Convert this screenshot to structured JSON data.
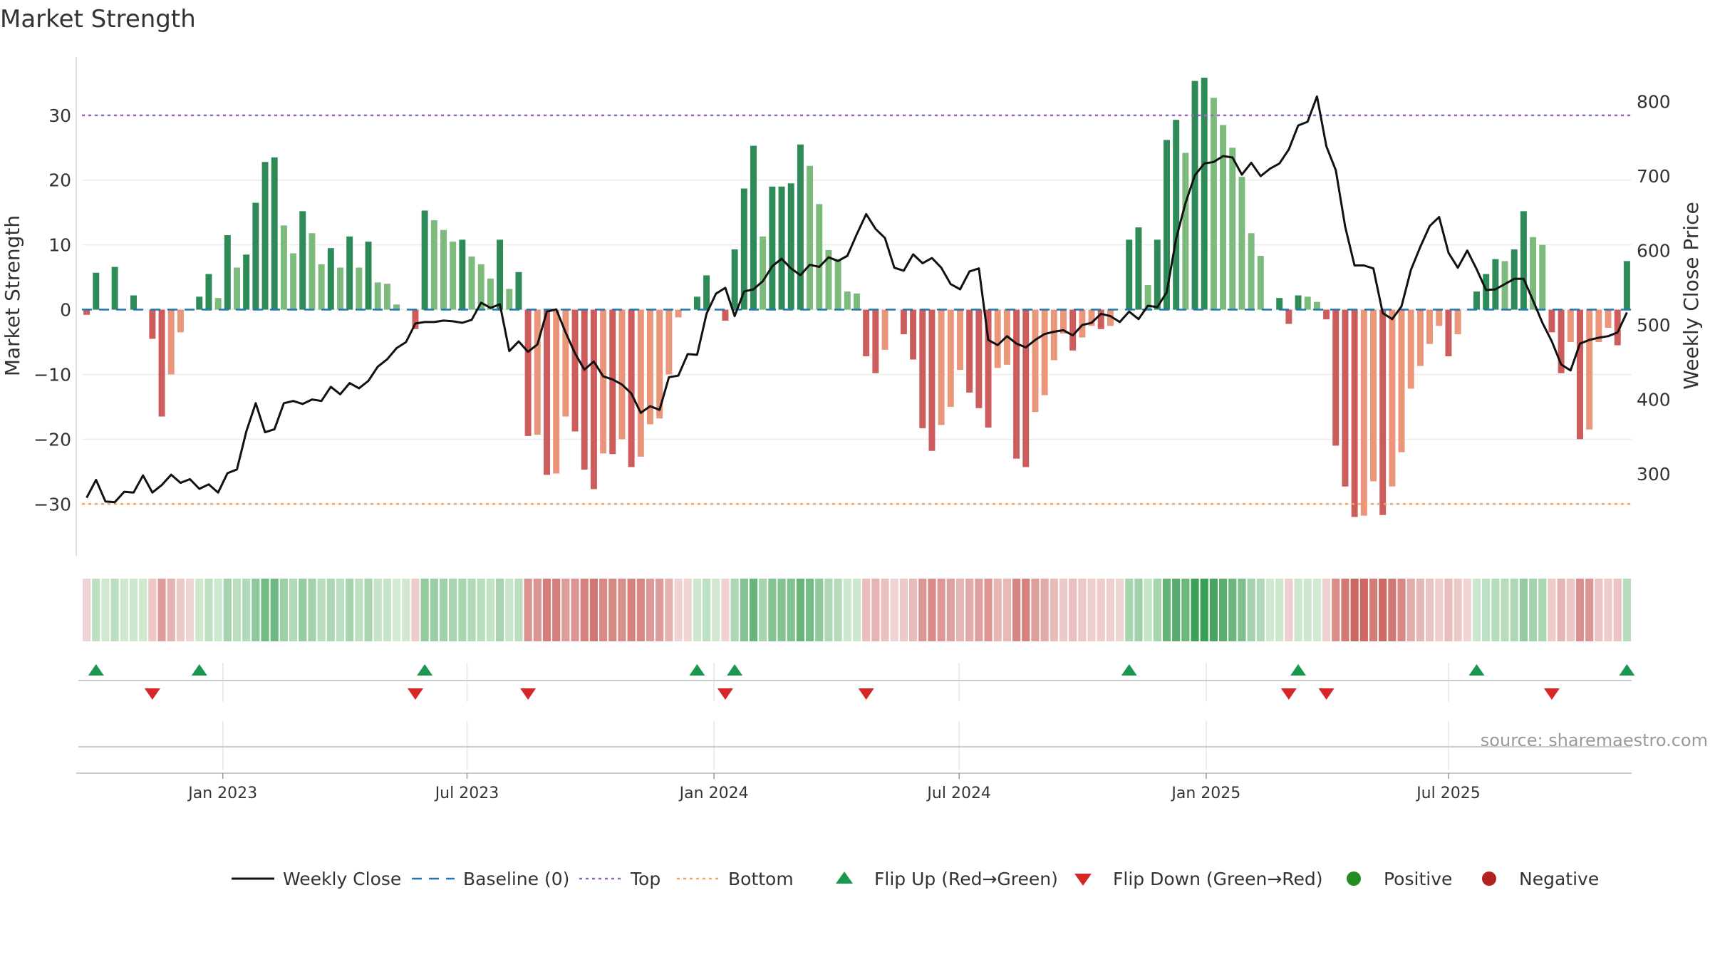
{
  "chart_data": {
    "type": "bar",
    "title": "Market Strength",
    "ylabel": "Market Strength",
    "y2label": "Weekly Close Price",
    "source": "source: sharemaestro.com",
    "ylim": [
      -38,
      39
    ],
    "y2lim": [
      190,
      860
    ],
    "yticks": [
      30,
      20,
      10,
      0,
      -10,
      -20,
      -30
    ],
    "ytick_labels": [
      "30",
      "20",
      "10",
      "0",
      "−10",
      "−20",
      "−30"
    ],
    "y2ticks": [
      800,
      700,
      600,
      500,
      400,
      300
    ],
    "y2tick_labels": [
      "800",
      "700",
      "600",
      "500",
      "400",
      "300"
    ],
    "x_labels": [
      {
        "label": "Jan 2023",
        "week": 14.5
      },
      {
        "label": "Jul 2023",
        "week": 40.5
      },
      {
        "label": "Jan 2024",
        "week": 66.8
      },
      {
        "label": "Jul 2024",
        "week": 92.9
      },
      {
        "label": "Jan 2025",
        "week": 119.2
      },
      {
        "label": "Jul 2025",
        "week": 145.0
      }
    ],
    "grid": true,
    "legend_position": "bottom",
    "thresholds": {
      "top": 30,
      "bottom": -30,
      "baseline": 0
    },
    "strength": [
      -0.8,
      5.7,
      0,
      6.6,
      0,
      2.2,
      0,
      -4.5,
      -16.5,
      -10.0,
      -3.5,
      0,
      2.0,
      5.5,
      1.8,
      11.5,
      6.5,
      8.5,
      16.5,
      22.8,
      23.5,
      13.0,
      8.7,
      15.2,
      11.8,
      7.0,
      9.5,
      6.5,
      11.3,
      6.5,
      10.5,
      4.2,
      4.0,
      0.8,
      0,
      -3.0,
      15.3,
      13.8,
      12.3,
      10.5,
      10.8,
      8.2,
      7.0,
      4.8,
      10.8,
      3.2,
      5.8,
      -19.5,
      -19.3,
      -25.5,
      -25.3,
      -16.5,
      -18.8,
      -24.7,
      -27.7,
      -22.2,
      -22.3,
      -20.0,
      -24.3,
      -22.7,
      -17.7,
      -16.8,
      -10.0,
      -1.2,
      0,
      2.0,
      5.3,
      0,
      -1.7,
      9.3,
      18.7,
      25.3,
      11.3,
      19.0,
      19.0,
      19.5,
      25.5,
      22.2,
      16.3,
      9.2,
      7.8,
      2.8,
      2.5,
      -7.2,
      -9.8,
      -6.2,
      0,
      -3.8,
      -7.7,
      -18.3,
      -21.8,
      -17.8,
      -15.0,
      -9.3,
      -12.8,
      -15.2,
      -18.2,
      -9.0,
      -8.5,
      -23.0,
      -24.3,
      -15.8,
      -13.2,
      -7.8,
      -3.7,
      -6.3,
      -4.3,
      -2.5,
      -3.0,
      -2.5,
      0,
      10.8,
      12.7,
      3.8,
      10.8,
      26.2,
      29.3,
      24.2,
      35.3,
      35.8,
      32.7,
      28.5,
      25.0,
      20.5,
      11.8,
      8.3,
      0,
      1.8,
      -2.2,
      2.2,
      2.0,
      1.2,
      -1.5,
      -21.0,
      -27.3,
      -32.0,
      -31.8,
      -26.5,
      -31.7,
      -27.3,
      -22.0,
      -12.2,
      -8.7,
      -5.3,
      -2.5,
      -7.2,
      -3.8,
      0,
      2.8,
      5.5,
      7.8,
      7.5,
      9.3,
      15.2,
      11.2,
      10.0,
      -3.5,
      -9.8,
      -5.0,
      -20.0,
      -18.5,
      -5.0,
      -2.8,
      -5.5,
      7.5
    ],
    "price": [
      268,
      292,
      263,
      262,
      276,
      275,
      298,
      275,
      285,
      299,
      288,
      293,
      280,
      286,
      275,
      301,
      306,
      357,
      395,
      356,
      360,
      395,
      398,
      394,
      400,
      398,
      417,
      407,
      422,
      415,
      425,
      444,
      454,
      469,
      477,
      502,
      504,
      504,
      506,
      505,
      503,
      507,
      530,
      523,
      528,
      465,
      478,
      464,
      474,
      518,
      521,
      490,
      462,
      440,
      451,
      431,
      427,
      420,
      408,
      382,
      391,
      386,
      430,
      432,
      461,
      460,
      515,
      542,
      550,
      512,
      545,
      548,
      559,
      579,
      589,
      576,
      567,
      581,
      578,
      591,
      586,
      593,
      622,
      649,
      629,
      617,
      577,
      573,
      595,
      583,
      590,
      577,
      555,
      548,
      572,
      576,
      480,
      473,
      485,
      475,
      470,
      480,
      488,
      491,
      493,
      486,
      500,
      503,
      515,
      512,
      504,
      518,
      508,
      526,
      524,
      544,
      616,
      664,
      701,
      717,
      719,
      727,
      725,
      702,
      718,
      700,
      710,
      717,
      736,
      768,
      773,
      807,
      740,
      708,
      632,
      580,
      580,
      576,
      516,
      508,
      525,
      574,
      605,
      633,
      645,
      597,
      577,
      600,
      575,
      547,
      548,
      555,
      562,
      562,
      533,
      503,
      478,
      447,
      439,
      475,
      480,
      483,
      485,
      490,
      517
    ]
  },
  "page": {
    "title": "Market Strength",
    "ylabel": "Market Strength",
    "y2label": "Weekly Close Price",
    "source": "source: sharemaestro.com"
  },
  "colors": {
    "strong_up": "#2e8b57",
    "weak_up": "#7dbb7d",
    "strong_down": "#cd5c5c",
    "weak_down": "#e9967a",
    "price_line": "#111111",
    "baseline": "#1f77b4",
    "top": "#9467bd",
    "bottom": "#f4a460",
    "flip_up": "#1a9850",
    "flip_down": "#d62728",
    "positive": "#228b22",
    "negative": "#b22222"
  },
  "legend": [
    {
      "label": "Weekly Close",
      "marker": "line-solid",
      "color": "#111111"
    },
    {
      "label": "Baseline (0)",
      "marker": "line-dash",
      "color": "#1f77b4"
    },
    {
      "label": "Top",
      "marker": "line-dot",
      "color": "#9467bd"
    },
    {
      "label": "Bottom",
      "marker": "line-dot",
      "color": "#f4a460"
    },
    {
      "label": "Flip Up (Red→Green)",
      "marker": "triangle-up",
      "color": "#1a9850"
    },
    {
      "label": "Flip Down (Green→Red)",
      "marker": "triangle-down",
      "color": "#d62728"
    },
    {
      "label": "Positive",
      "marker": "circle",
      "color": "#228b22"
    },
    {
      "label": "Negative",
      "marker": "circle",
      "color": "#b22222"
    }
  ]
}
